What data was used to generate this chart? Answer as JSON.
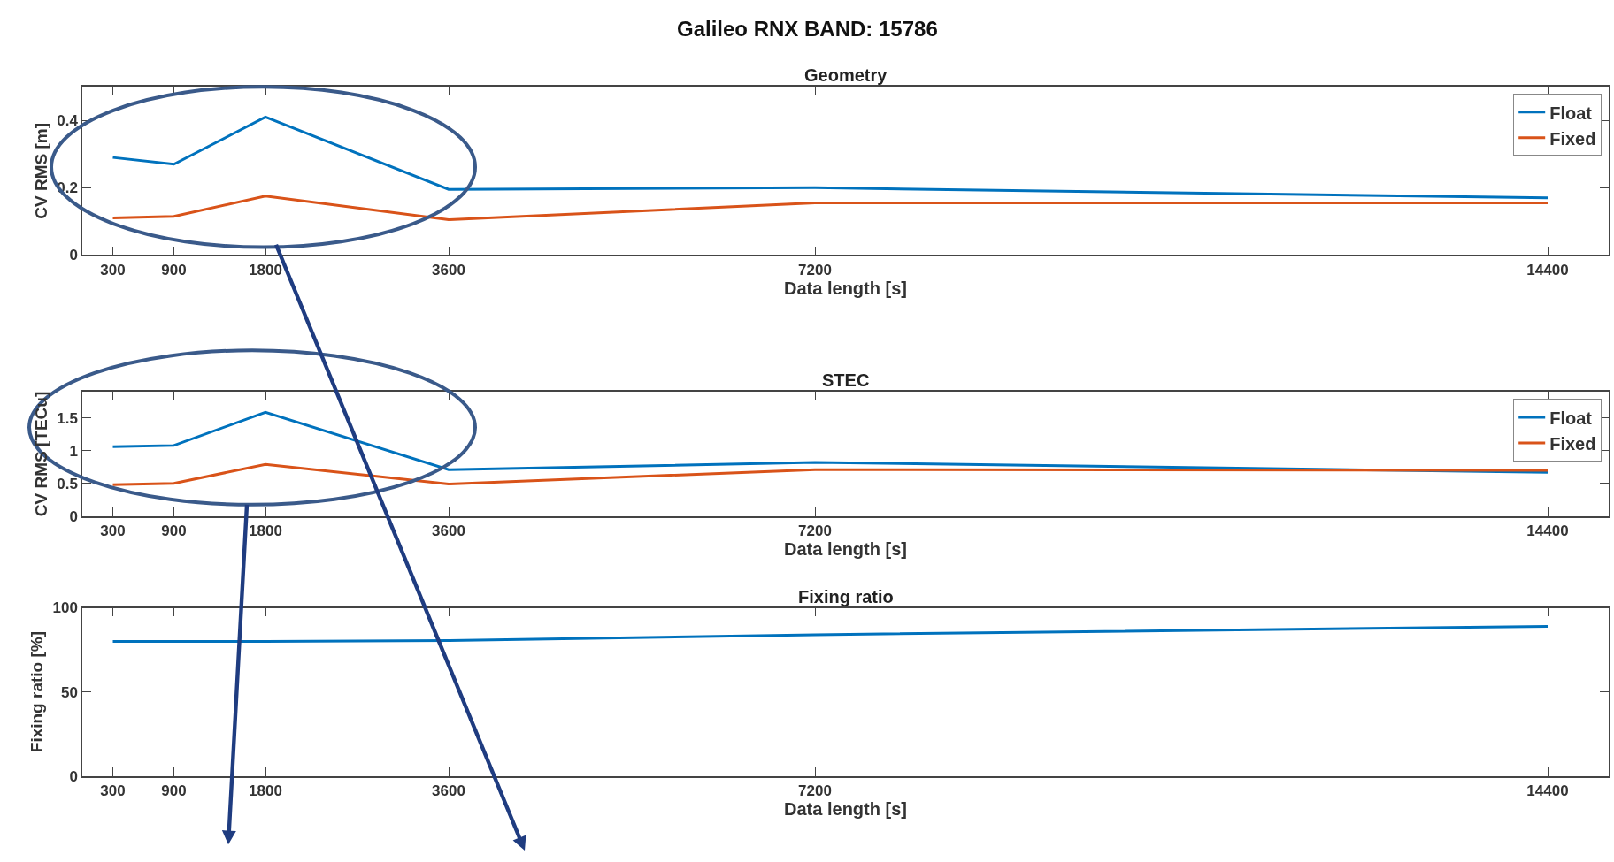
{
  "chart_data": [
    {
      "type": "line",
      "title": "Geometry",
      "annotations": [
        "Galileo RNX BAND: 15786"
      ],
      "xlabel": "Data length [s]",
      "ylabel": "CV RMS [m]",
      "x": [
        300,
        900,
        1800,
        3600,
        7200,
        14400
      ],
      "series": [
        {
          "name": "Float",
          "color": "#0072bd",
          "values": [
            0.29,
            0.27,
            0.41,
            0.195,
            0.2,
            0.17
          ]
        },
        {
          "name": "Fixed",
          "color": "#d95319",
          "values": [
            0.11,
            0.115,
            0.175,
            0.105,
            0.155,
            0.155
          ]
        }
      ],
      "xlim": [
        0,
        15000
      ],
      "xticks": [
        300,
        900,
        1800,
        3600,
        7200,
        14400
      ],
      "ylim": [
        0,
        0.5
      ],
      "yticks": [
        0,
        0.2,
        0.4
      ],
      "legend": "top right",
      "marker": "none",
      "line_style": "solid"
    },
    {
      "type": "line",
      "title": "STEC",
      "xlabel": "Data length [s]",
      "ylabel": "CV RMS [TECu]",
      "x": [
        300,
        900,
        1800,
        3600,
        7200,
        14400
      ],
      "series": [
        {
          "name": "Float",
          "color": "#0072bd",
          "values": [
            1.06,
            1.08,
            1.59,
            0.71,
            0.82,
            0.67
          ]
        },
        {
          "name": "Fixed",
          "color": "#d95319",
          "values": [
            0.48,
            0.5,
            0.79,
            0.49,
            0.71,
            0.7
          ]
        }
      ],
      "xlim": [
        0,
        15000
      ],
      "xticks": [
        300,
        900,
        1800,
        3600,
        7200,
        14400
      ],
      "ylim": [
        0,
        1.9
      ],
      "yticks": [
        0,
        0.5,
        1,
        1.5
      ],
      "legend": "top right",
      "marker": "none",
      "line_style": "solid"
    },
    {
      "type": "line",
      "title": "Fixing ratio",
      "xlabel": "Data length [s]",
      "ylabel": "Fixing ratio [%]",
      "x": [
        300,
        900,
        1800,
        3600,
        7200,
        14400
      ],
      "series": [
        {
          "color": "#0072bd",
          "values": [
            80,
            80,
            80,
            80.5,
            84,
            89
          ]
        }
      ],
      "xlim": [
        0,
        15000
      ],
      "xticks": [
        300,
        900,
        1800,
        3600,
        7200,
        14400
      ],
      "ylim": [
        0,
        100
      ],
      "yticks": [
        0,
        50,
        100
      ],
      "legend": false,
      "marker": "none",
      "line_style": "solid"
    }
  ]
}
